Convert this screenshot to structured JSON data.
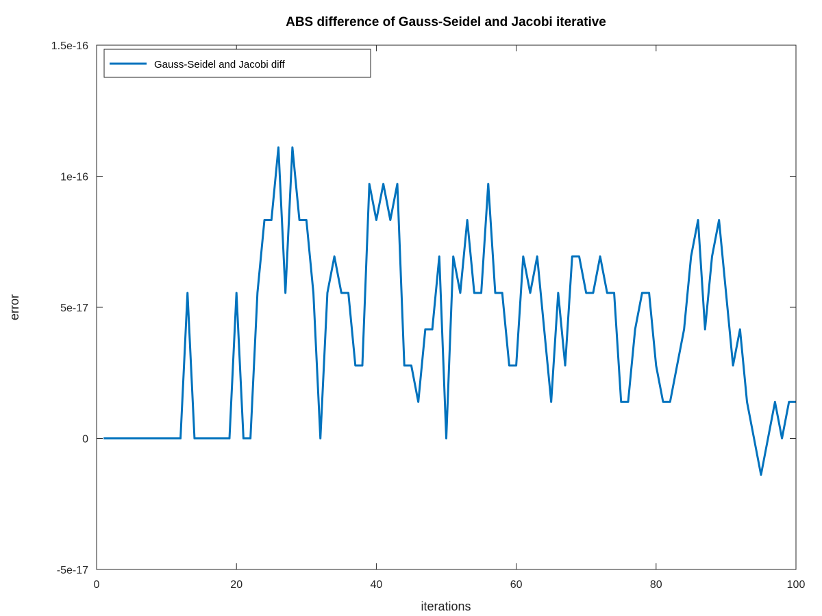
{
  "chart_data": {
    "type": "line",
    "title": "ABS difference of Gauss-Seidel and Jacobi iterative",
    "xlabel": "iterations",
    "ylabel": "error",
    "xlim": [
      0,
      100
    ],
    "ylim": [
      -5e-17,
      1.5e-16
    ],
    "xticks": [
      0,
      20,
      40,
      60,
      80,
      100
    ],
    "xtick_labels": [
      "0",
      "20",
      "40",
      "60",
      "80",
      "100"
    ],
    "yticks": [
      -5e-17,
      0,
      5e-17,
      1e-16,
      1.5e-16
    ],
    "ytick_labels": [
      "-5e-17",
      "0",
      "5e-17",
      "1e-16",
      "1.5e-16"
    ],
    "grid": false,
    "legend_position": "top-left",
    "series": [
      {
        "name": "Gauss-Seidel and Jacobi diff",
        "color": "#0072BD",
        "x": [
          1,
          2,
          3,
          4,
          5,
          6,
          7,
          8,
          9,
          10,
          11,
          12,
          13,
          14,
          15,
          16,
          17,
          18,
          19,
          20,
          21,
          22,
          23,
          24,
          25,
          26,
          27,
          28,
          29,
          30,
          31,
          32,
          33,
          34,
          35,
          36,
          37,
          38,
          39,
          40,
          41,
          42,
          43,
          44,
          45,
          46,
          47,
          48,
          49,
          50,
          51,
          52,
          53,
          54,
          55,
          56,
          57,
          58,
          59,
          60,
          61,
          62,
          63,
          64,
          65,
          66,
          67,
          68,
          69,
          70,
          71,
          72,
          73,
          74,
          75,
          76,
          77,
          78,
          79,
          80,
          81,
          82,
          83,
          84,
          85,
          86,
          87,
          88,
          89,
          90,
          91,
          92,
          93,
          94,
          95,
          96,
          97,
          98,
          99,
          100
        ],
        "y": [
          0,
          0,
          0,
          0,
          0,
          0,
          0,
          0,
          0,
          0,
          0,
          0,
          5.55e-17,
          0,
          0,
          0,
          0,
          0,
          0,
          5.55e-17,
          0,
          0,
          5.55e-17,
          8.33e-17,
          8.33e-17,
          1.11e-16,
          5.55e-17,
          1.11e-16,
          8.33e-17,
          8.33e-17,
          5.55e-17,
          0,
          5.55e-17,
          6.94e-17,
          5.55e-17,
          5.55e-17,
          2.78e-17,
          2.78e-17,
          9.71e-17,
          8.33e-17,
          9.71e-17,
          8.33e-17,
          9.71e-17,
          2.78e-17,
          2.78e-17,
          1.39e-17,
          4.16e-17,
          4.16e-17,
          6.94e-17,
          0,
          6.94e-17,
          5.55e-17,
          8.33e-17,
          5.55e-17,
          5.55e-17,
          9.71e-17,
          5.55e-17,
          5.55e-17,
          2.78e-17,
          2.78e-17,
          6.94e-17,
          5.55e-17,
          6.94e-17,
          4.16e-17,
          1.39e-17,
          5.55e-17,
          2.78e-17,
          6.94e-17,
          6.94e-17,
          5.55e-17,
          5.55e-17,
          6.94e-17,
          5.55e-17,
          5.55e-17,
          1.39e-17,
          1.39e-17,
          4.16e-17,
          5.55e-17,
          5.55e-17,
          2.78e-17,
          1.39e-17,
          1.39e-17,
          2.78e-17,
          4.16e-17,
          6.94e-17,
          8.33e-17,
          4.16e-17,
          6.94e-17,
          8.33e-17,
          5.55e-17,
          2.78e-17,
          4.16e-17,
          1.39e-17,
          0,
          -1.39e-17,
          0,
          1.39e-17,
          0,
          1.39e-17,
          1.39e-17
        ]
      }
    ]
  }
}
